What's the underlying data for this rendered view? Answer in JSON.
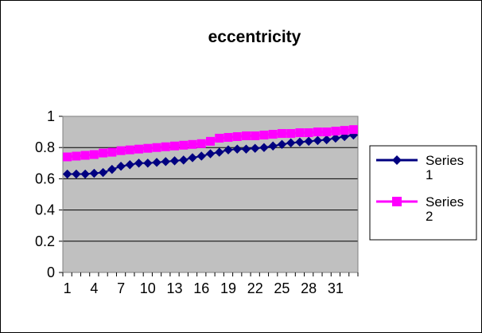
{
  "chart_data": {
    "type": "line",
    "title": "eccentricity",
    "xlabel": "",
    "ylabel": "",
    "x": [
      1,
      2,
      3,
      4,
      5,
      6,
      7,
      8,
      9,
      10,
      11,
      12,
      13,
      14,
      15,
      16,
      17,
      18,
      19,
      20,
      21,
      22,
      23,
      24,
      25,
      26,
      27,
      28,
      29,
      30,
      31,
      32,
      33
    ],
    "x_tick_labels": [
      "1",
      "4",
      "7",
      "10",
      "13",
      "16",
      "19",
      "22",
      "25",
      "28",
      "31"
    ],
    "y_tick_labels": [
      "0",
      "0.2",
      "0.4",
      "0.6",
      "0.8",
      "1"
    ],
    "ylim": [
      0,
      1
    ],
    "grid": true,
    "legend_position": "right",
    "plot_background": "#c0c0c0",
    "series": [
      {
        "name": "Series 1",
        "color": "#000080",
        "marker": "diamond",
        "values": [
          0.63,
          0.63,
          0.63,
          0.635,
          0.64,
          0.66,
          0.68,
          0.69,
          0.7,
          0.7,
          0.705,
          0.71,
          0.715,
          0.72,
          0.735,
          0.745,
          0.76,
          0.77,
          0.785,
          0.79,
          0.79,
          0.795,
          0.8,
          0.81,
          0.82,
          0.83,
          0.835,
          0.84,
          0.845,
          0.85,
          0.86,
          0.87,
          0.88
        ]
      },
      {
        "name": "Series 2",
        "color": "#ff00ff",
        "marker": "square",
        "values": [
          0.74,
          0.745,
          0.75,
          0.755,
          0.765,
          0.77,
          0.78,
          0.785,
          0.79,
          0.795,
          0.8,
          0.805,
          0.81,
          0.815,
          0.82,
          0.825,
          0.84,
          0.86,
          0.865,
          0.87,
          0.875,
          0.875,
          0.88,
          0.885,
          0.89,
          0.89,
          0.895,
          0.895,
          0.9,
          0.9,
          0.905,
          0.91,
          0.915
        ]
      }
    ]
  }
}
